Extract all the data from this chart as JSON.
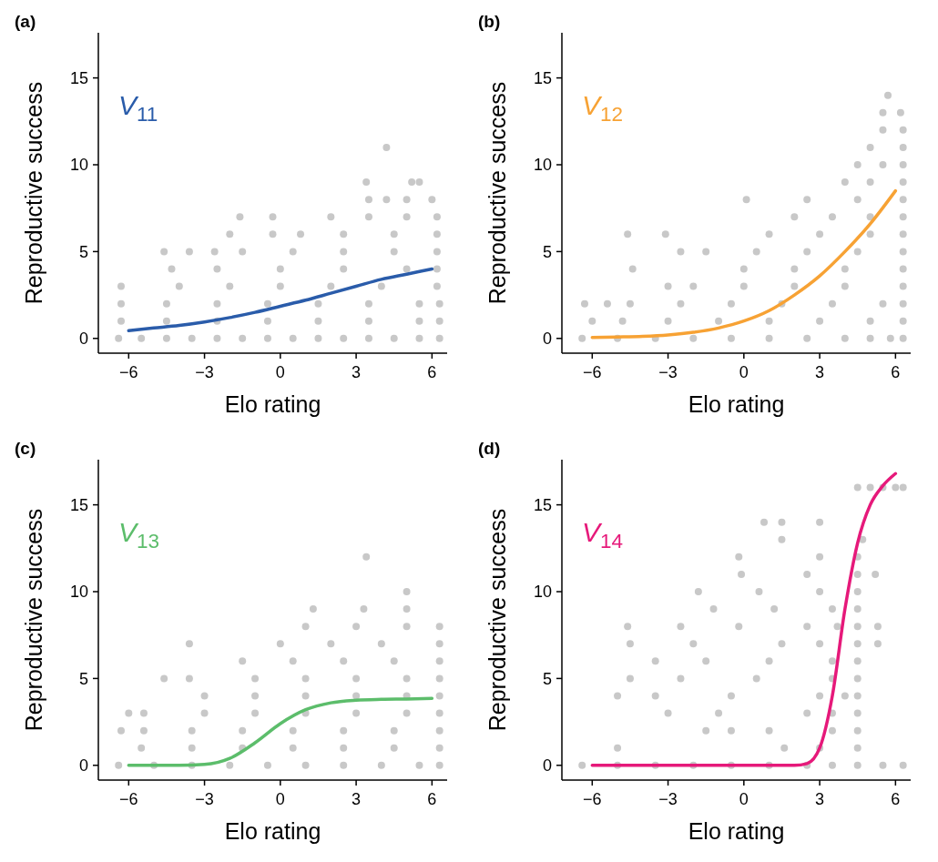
{
  "chart_data": [
    {
      "type": "scatter",
      "title": "(a)",
      "xlabel": "Elo rating",
      "ylabel": "Reproductive success",
      "xlim": [
        -7.2,
        6.6
      ],
      "ylim": [
        -0.85,
        17.6
      ],
      "xticks": [
        -6,
        -3,
        0,
        3,
        6
      ],
      "yticks": [
        0,
        5,
        10,
        15
      ],
      "series": [
        {
          "marker": "circle",
          "color": "#c8c8c8",
          "x": [
            -6.4,
            -5.5,
            -4.5,
            -3.5,
            -2.5,
            -1.5,
            -0.5,
            0.5,
            1.5,
            2.5,
            3.5,
            4.5,
            5.5,
            6.3,
            -6.3,
            -4.5,
            -2.5,
            -0.5,
            1.5,
            3.5,
            5.5,
            6.3,
            -6.3,
            -4.5,
            -2.5,
            -0.5,
            1.5,
            3.5,
            5.5,
            6.3,
            -6.3,
            -4,
            -2,
            0,
            2,
            4,
            6.2,
            -4.3,
            -2.5,
            0,
            2.5,
            5,
            6.2,
            -4.6,
            -3.6,
            -2.6,
            -1.5,
            0.5,
            2.5,
            4.5,
            6.2,
            -2,
            -0.3,
            0.8,
            2.5,
            4.5,
            6.2,
            -1.6,
            -0.3,
            2,
            3.5,
            5,
            6.2,
            3.5,
            4.2,
            5,
            6,
            3.4,
            5.2,
            5.5,
            4.2
          ],
          "values": [
            0,
            0,
            0,
            0,
            0,
            0,
            0,
            0,
            0,
            0,
            0,
            0,
            0,
            0,
            1,
            1,
            1,
            1,
            1,
            1,
            1,
            1,
            2,
            2,
            2,
            2,
            2,
            2,
            2,
            2,
            3,
            3,
            3,
            3,
            3,
            3,
            3,
            4,
            4,
            4,
            4,
            4,
            4,
            5,
            5,
            5,
            5,
            5,
            5,
            5,
            5,
            6,
            6,
            6,
            6,
            6,
            6,
            7,
            7,
            7,
            7,
            7,
            7,
            8,
            8,
            8,
            8,
            9,
            9,
            9,
            11
          ]
        },
        {
          "type": "line",
          "name": "V$_{11}$",
          "color": "#2a5caa",
          "x": [
            -6,
            -5,
            -4,
            -3,
            -2,
            -1,
            0,
            1,
            2,
            3,
            4,
            5,
            6
          ],
          "values": [
            0.45,
            0.6,
            0.75,
            0.95,
            1.2,
            1.5,
            1.85,
            2.2,
            2.6,
            3.0,
            3.4,
            3.7,
            4.0
          ]
        }
      ]
    },
    {
      "type": "scatter",
      "title": "(b)",
      "xlabel": "Elo rating",
      "ylabel": "Reproductive success",
      "xlim": [
        -7.2,
        6.6
      ],
      "ylim": [
        -0.85,
        17.6
      ],
      "xticks": [
        -6,
        -3,
        0,
        3,
        6
      ],
      "yticks": [
        0,
        5,
        10,
        15
      ],
      "series": [
        {
          "marker": "circle",
          "color": "#c8c8c8",
          "x": [
            -6.4,
            -5,
            -3.5,
            -2,
            -0.5,
            1,
            2.5,
            4,
            5,
            5.8,
            6.3,
            -6,
            -4.8,
            -3,
            -1,
            1,
            3,
            5,
            6.3,
            -6.3,
            -5.4,
            -4.5,
            -2.5,
            -0.5,
            1.5,
            3.5,
            5.5,
            6.3,
            -3,
            -2,
            0,
            2,
            4,
            6.3,
            -4.4,
            0,
            2,
            4,
            6.3,
            -2.5,
            -1.5,
            0.5,
            2.5,
            4.5,
            6.3,
            -4.6,
            -3.1,
            1,
            3,
            5,
            6.3,
            2,
            3.5,
            5,
            6.3,
            0.1,
            2.5,
            4.5,
            6.3,
            4,
            5,
            6.3,
            4.5,
            5.5,
            6.3,
            5,
            6.3,
            5.5,
            6.3,
            5.5,
            6.2,
            5.7
          ],
          "values": [
            0,
            0,
            0,
            0,
            0,
            0,
            0,
            0,
            0,
            0,
            0,
            1,
            1,
            1,
            1,
            1,
            1,
            1,
            1,
            2,
            2,
            2,
            2,
            2,
            2,
            2,
            2,
            2,
            3,
            3,
            3,
            3,
            3,
            3,
            4,
            4,
            4,
            4,
            4,
            5,
            5,
            5,
            5,
            5,
            5,
            6,
            6,
            6,
            6,
            6,
            6,
            7,
            7,
            7,
            7,
            8,
            8,
            8,
            8,
            9,
            9,
            9,
            10,
            10,
            10,
            11,
            11,
            12,
            12,
            13,
            13,
            14
          ]
        },
        {
          "type": "line",
          "name": "V$_{12}$",
          "color": "#f7a234",
          "x": [
            -6,
            -5,
            -4,
            -3,
            -2,
            -1,
            0,
            1,
            2,
            3,
            4,
            5,
            6
          ],
          "values": [
            0.05,
            0.08,
            0.12,
            0.2,
            0.35,
            0.6,
            1.0,
            1.6,
            2.5,
            3.6,
            5.0,
            6.6,
            8.5
          ]
        }
      ]
    },
    {
      "type": "scatter",
      "title": "(c)",
      "xlabel": "Elo rating",
      "ylabel": "Reproductive success",
      "xlim": [
        -7.2,
        6.6
      ],
      "ylim": [
        -0.85,
        17.6
      ],
      "xticks": [
        -6,
        -3,
        0,
        3,
        6
      ],
      "yticks": [
        0,
        5,
        10,
        15
      ],
      "series": [
        {
          "marker": "circle",
          "color": "#c8c8c8",
          "x": [
            -6.4,
            -5,
            -3.5,
            -2,
            -0.5,
            1,
            2.5,
            4,
            5.5,
            6.3,
            -5.5,
            -3.5,
            -1.5,
            0.5,
            2.5,
            4.5,
            6.3,
            -6.3,
            -5.4,
            -3.5,
            -1.5,
            0.5,
            2.5,
            4.5,
            6.3,
            -6,
            -5.4,
            -3,
            -1,
            1,
            3,
            5,
            6.3,
            -3,
            -1,
            1,
            3,
            5,
            6.3,
            -4.6,
            -3.6,
            -1,
            1,
            3,
            5,
            6.3,
            -1.5,
            0.5,
            2.5,
            4.5,
            6.3,
            -3.6,
            0,
            2,
            4,
            6.3,
            1,
            3,
            5,
            6.3,
            1.3,
            3.3,
            5,
            5,
            3.4
          ],
          "values": [
            0,
            0,
            0,
            0,
            0,
            0,
            0,
            0,
            0,
            0,
            1,
            1,
            1,
            1,
            1,
            1,
            1,
            2,
            2,
            2,
            2,
            2,
            2,
            2,
            2,
            3,
            3,
            3,
            3,
            3,
            3,
            3,
            3,
            4,
            4,
            4,
            4,
            4,
            4,
            5,
            5,
            5,
            5,
            5,
            5,
            5,
            6,
            6,
            6,
            6,
            6,
            7,
            7,
            7,
            7,
            7,
            8,
            8,
            8,
            8,
            9,
            9,
            9,
            10,
            12
          ]
        },
        {
          "type": "line",
          "name": "V$_{13}$",
          "color": "#5cbd6b",
          "x": [
            -6,
            -5,
            -4,
            -3,
            -2,
            -1,
            0,
            1,
            2,
            3,
            4,
            5,
            6
          ],
          "values": [
            0,
            0,
            0,
            0.05,
            0.4,
            1.3,
            2.4,
            3.2,
            3.6,
            3.75,
            3.8,
            3.82,
            3.85
          ]
        }
      ]
    },
    {
      "type": "scatter",
      "title": "(d)",
      "xlabel": "Elo rating",
      "ylabel": "Reproductive success",
      "xlim": [
        -7.2,
        6.6
      ],
      "ylim": [
        -0.85,
        17.6
      ],
      "xticks": [
        -6,
        -3,
        0,
        3,
        6
      ],
      "yticks": [
        0,
        5,
        10,
        15
      ],
      "series": [
        {
          "marker": "circle",
          "color": "#c8c8c8",
          "x": [
            -6.4,
            -5,
            -3.5,
            -2,
            -0.5,
            1,
            2.5,
            3.5,
            4.5,
            5.5,
            6.3,
            -5,
            1.6,
            3,
            4.5,
            -1.5,
            -0.5,
            1,
            3.5,
            4.5,
            -3,
            -1,
            2.5,
            3.5,
            4.5,
            -5,
            -3.5,
            -0.5,
            3,
            4,
            4.5,
            -4.5,
            -2.5,
            0.5,
            3.5,
            4.5,
            -3.5,
            -1.5,
            1,
            3.5,
            4.5,
            -4.5,
            -2,
            1.5,
            3,
            4.5,
            5.3,
            -4.6,
            -2.5,
            -0.2,
            2.5,
            3.7,
            4.5,
            5.3,
            -1.2,
            1.2,
            3.5,
            4.5,
            -1.8,
            0.6,
            3,
            4.5,
            -0.1,
            2.5,
            4.5,
            5.2,
            -0.2,
            3,
            4.5,
            1.5,
            4.7,
            0.8,
            1.5,
            3,
            4.5,
            5,
            5.5,
            6,
            6.3
          ],
          "values": [
            0,
            0,
            0,
            0,
            0,
            0,
            0,
            0,
            0,
            0,
            0,
            1,
            1,
            1,
            1,
            2,
            2,
            2,
            2,
            2,
            3,
            3,
            3,
            3,
            3,
            4,
            4,
            4,
            4,
            4,
            4,
            5,
            5,
            5,
            5,
            5,
            6,
            6,
            6,
            6,
            6,
            7,
            7,
            7,
            7,
            7,
            7,
            8,
            8,
            8,
            8,
            8,
            8,
            8,
            9,
            9,
            9,
            9,
            10,
            10,
            10,
            10,
            11,
            11,
            11,
            11,
            12,
            12,
            12,
            13,
            13,
            14,
            14,
            14,
            16,
            16,
            16,
            16,
            16
          ]
        },
        {
          "type": "line",
          "name": "V$_{14}$",
          "color": "#e6197a",
          "x": [
            -6,
            -4,
            -2,
            0,
            2,
            2.5,
            3,
            3.5,
            4,
            4.5,
            5,
            5.5,
            6
          ],
          "values": [
            0,
            0,
            0,
            0,
            0,
            0.1,
            1.0,
            4,
            9,
            12.8,
            15,
            16.1,
            16.8
          ]
        }
      ]
    }
  ]
}
